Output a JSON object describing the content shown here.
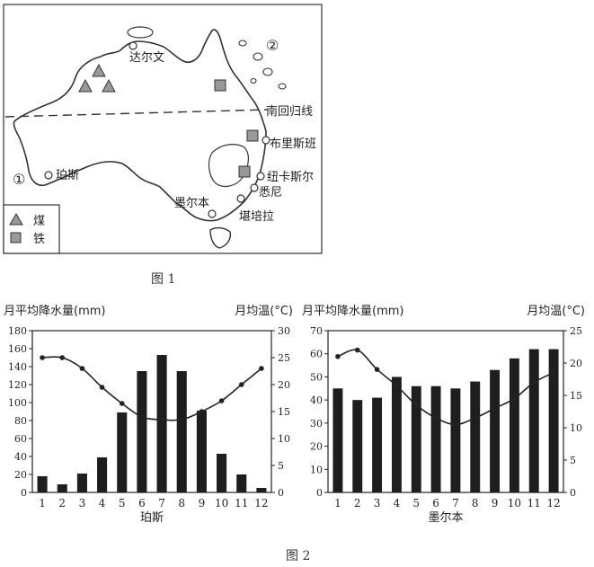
{
  "figure1": {
    "caption": "图 1",
    "labels": {
      "darwin": "达尔文",
      "brisbane": "布里斯班",
      "perth": "珀斯",
      "newcastle": "纽卡斯尔",
      "sydney": "悉尼",
      "melbourne": "墨尔本",
      "canberra": "堪培拉",
      "tropic": "南回归线",
      "region1": "①",
      "region2": "②"
    },
    "legend": {
      "coal": "煤",
      "iron": "铁"
    }
  },
  "figure2": {
    "caption": "图 2"
  },
  "chart_data": [
    {
      "type": "bar",
      "city": "珀斯",
      "y_left_label": "月平均降水量(mm)",
      "y_right_label": "月均温(°C)",
      "categories": [
        "1",
        "2",
        "3",
        "4",
        "5",
        "6",
        "7",
        "8",
        "9",
        "10",
        "11",
        "12"
      ],
      "precip_mm": [
        18,
        9,
        21,
        39,
        89,
        135,
        153,
        135,
        91,
        43,
        20,
        5
      ],
      "temp_c": [
        25,
        25,
        23,
        19.5,
        16.5,
        14,
        13.5,
        13.5,
        15,
        17,
        20,
        23
      ],
      "ylim_left": [
        0,
        180
      ],
      "yticks_left": [
        0,
        20,
        40,
        60,
        80,
        100,
        120,
        140,
        160,
        180
      ],
      "ylim_right": [
        0,
        30
      ],
      "yticks_right": [
        0,
        5,
        10,
        15,
        20,
        25,
        30
      ]
    },
    {
      "type": "bar",
      "city": "墨尔本",
      "y_left_label": "月平均降水量(mm)",
      "y_right_label": "月均温(°C)",
      "categories": [
        "1",
        "2",
        "3",
        "4",
        "5",
        "6",
        "7",
        "8",
        "9",
        "10",
        "11",
        "12"
      ],
      "precip_mm": [
        45,
        40,
        41,
        50,
        46,
        46,
        45,
        48,
        53,
        58,
        62,
        62
      ],
      "temp_c": [
        21,
        22,
        19,
        16.5,
        13.5,
        11.5,
        10.5,
        11.5,
        13,
        14.5,
        17,
        18.5
      ],
      "ylim_left": [
        0,
        70
      ],
      "yticks_left": [
        0,
        10,
        20,
        30,
        40,
        50,
        60,
        70
      ],
      "ylim_right": [
        0,
        25
      ],
      "yticks_right": [
        0,
        5,
        10,
        15,
        20,
        25
      ]
    }
  ]
}
